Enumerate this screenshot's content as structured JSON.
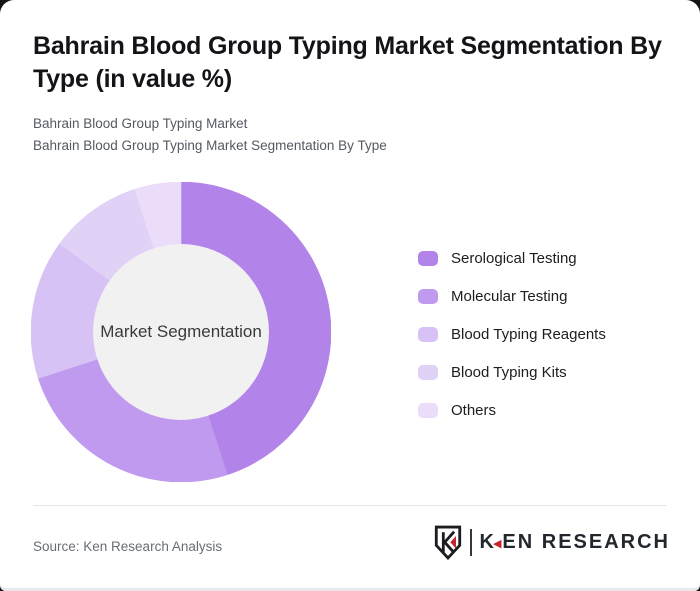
{
  "page": {
    "title": "Bahrain Blood Group Typing Market Segmentation By Type (in value %)",
    "subtitle_line1": "Bahrain Blood Group Typing Market",
    "subtitle_line2": "Bahrain Blood Group Typing Market Segmentation By Type"
  },
  "chart_data": {
    "type": "pie",
    "subtype": "donut",
    "title": "Bahrain Blood Group Typing Market Segmentation By Type (in value %)",
    "center_label": "Market Segmentation",
    "categories": [
      "Serological Testing",
      "Molecular Testing",
      "Blood Typing Reagents",
      "Blood Typing Kits",
      "Others"
    ],
    "values": [
      45,
      25,
      15,
      10,
      5
    ],
    "unit": "%",
    "colors": [
      "#b283e8",
      "#c09aee",
      "#d6c2f4",
      "#e0d1f7",
      "#ebdcf9"
    ],
    "start_angle_deg": 0,
    "direction": "clockwise",
    "inner_hole_color": "#f1f1f2",
    "legend_position": "right",
    "grid": false
  },
  "footer": {
    "source_text": "Source: Ken Research Analysis",
    "logo_first_letter": "K",
    "logo_accent_glyph": "◀",
    "logo_rest": "EN RESEARCH",
    "logo_full_text": "KEN RESEARCH",
    "brand_red": "#c4242b",
    "brand_dark": "#22272e"
  }
}
